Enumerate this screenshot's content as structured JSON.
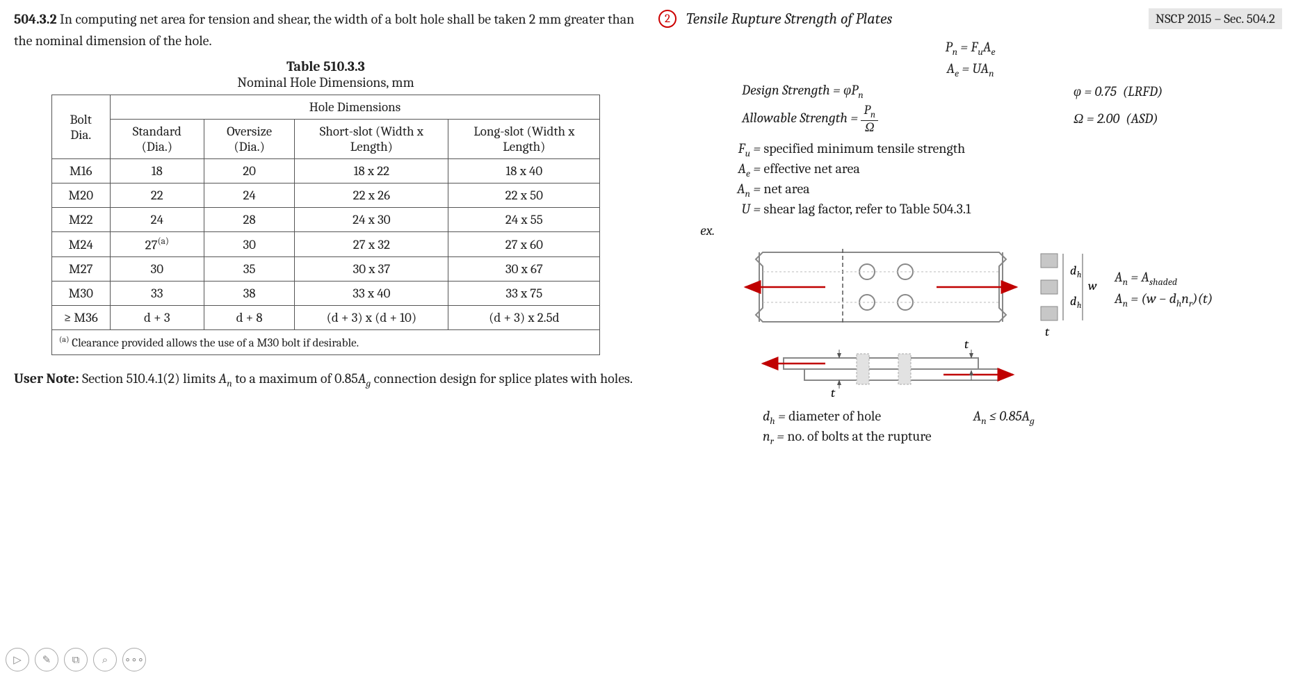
{
  "left": {
    "sec_num": "504.3.2",
    "sec_text": " In computing net area for tension and shear, the width of a bolt hole shall be taken 2 mm greater than the nominal dimension of the hole.",
    "table_title": "Table 510.3.3",
    "table_sub": "Nominal Hole Dimensions, mm",
    "headers": {
      "span": "Hole Dimensions",
      "bolt": "Bolt Dia.",
      "std": "Standard (Dia.)",
      "ovr": "Oversize (Dia.)",
      "shortslot": "Short-slot (Width x Length)",
      "longslot": "Long-slot (Width x Length)"
    },
    "rows": [
      {
        "b": "M16",
        "s": "18",
        "o": "20",
        "ss": "18 x 22",
        "ls": "18 x 40",
        "sup": false
      },
      {
        "b": "M20",
        "s": "22",
        "o": "24",
        "ss": "22 x 26",
        "ls": "22 x 50",
        "sup": false
      },
      {
        "b": "M22",
        "s": "24",
        "o": "28",
        "ss": "24 x 30",
        "ls": "24 x 55",
        "sup": false
      },
      {
        "b": "M24",
        "s": "27",
        "o": "30",
        "ss": "27 x 32",
        "ls": "27 x 60",
        "sup": true,
        "sup_text": "(a)"
      },
      {
        "b": "M27",
        "s": "30",
        "o": "35",
        "ss": "30 x 37",
        "ls": "30 x 67",
        "sup": false
      },
      {
        "b": "M30",
        "s": "33",
        "o": "38",
        "ss": "33 x 40",
        "ls": "33 x 75",
        "sup": false
      },
      {
        "b": "≥ M36",
        "s": "d + 3",
        "o": "d + 8",
        "ss": "(d + 3) x (d + 10)",
        "ls": "(d + 3) x 2.5d",
        "sup": false
      }
    ],
    "footnote_sup": "(a)",
    "footnote": " Clearance provided allows the use of a M30 bolt if desirable.",
    "usernote_label": "User Note:",
    "usernote_text": " Section 510.4.1(2) limits Aₙ to a maximum of 0.85A_g connection design for splice plates with holes."
  },
  "right": {
    "num": "2",
    "title": "Tensile Rupture Strength of Plates",
    "badge": "NSCP 2015 – Sec. 504.2",
    "eq1_html": "P<sub>n</sub> = F<sub>u</sub>A<sub>e</sub>",
    "eq2_html": "A<sub>e</sub> = UA<sub>n</sub>",
    "design_lhs_html": "Design Strength = φP<sub>n</sub>",
    "design_rhs_html": "φ = 0.75&nbsp;&nbsp;(LRFD)",
    "allow_lhs_html": "Allowable Strength = <span class='frac'><span class='num'>P<sub>n</sub></span><span class='den'>Ω</span></span>",
    "allow_rhs_html": "Ω = 2.00&nbsp;&nbsp;(ASD)",
    "defs": [
      {
        "sym": "F<sub>u</sub>",
        "txt": "specified minimum tensile strength"
      },
      {
        "sym": "A<sub>e</sub>",
        "txt": "effective net area"
      },
      {
        "sym": "A<sub>n</sub>",
        "txt": "net area"
      },
      {
        "sym": "U",
        "txt": "shear lag factor, refer to Table 504.3.1"
      }
    ],
    "ex": "ex.",
    "diagram": {
      "plate_color": "#888",
      "arrow_color": "#c00000",
      "hole_stroke": "#888",
      "dash_color": "#999",
      "shade_color": "#c7c7c7",
      "n_holes_row": 2,
      "n_holes_col": 2,
      "labels": {
        "dh": "d<sub>h</sub>",
        "w": "w",
        "t": "t"
      }
    },
    "an_eqs": [
      "A<sub>n</sub> = A<sub>shaded</sub>",
      "A<sub>n</sub> = (w − d<sub>h</sub>n<sub>r</sub>)(t)"
    ],
    "defs2": {
      "dh": "d<sub>h</sub> = <span class='upright'>diameter of hole</span>",
      "nr": "n<sub>r</sub> = <span class='upright'>no. of bolts at the rupture</span>",
      "limit": "A<sub>n</sub> ≤ 0.85A<sub>g</sub>"
    }
  },
  "toolbar": {
    "icons": [
      "▷",
      "✎",
      "⧉",
      "⌕",
      "∘∘∘"
    ]
  }
}
